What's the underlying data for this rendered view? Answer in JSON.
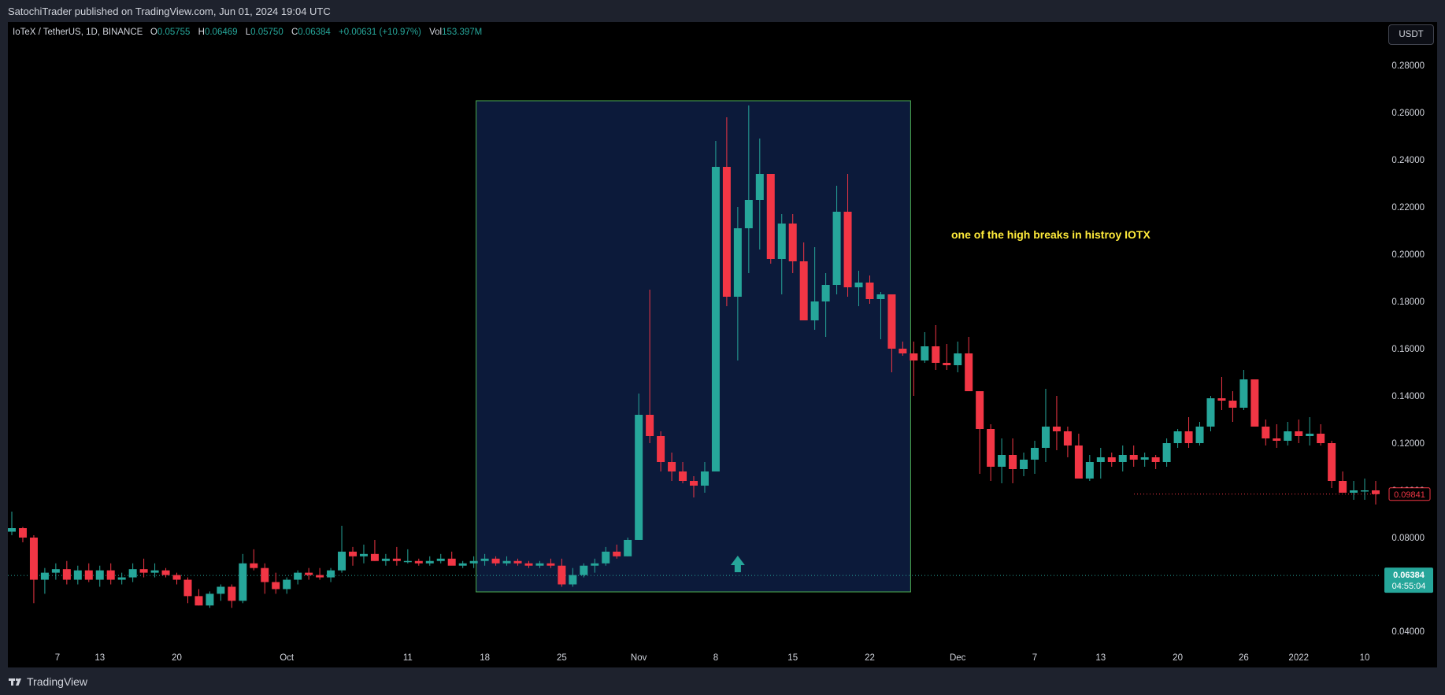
{
  "header": {
    "publish_line": "SatochiTrader published on TradingView.com, Jun 01, 2024 19:04 UTC"
  },
  "legend": {
    "symbol_line": "IoTeX / TetherUS, 1D, BINANCE",
    "o_label": "O",
    "o_value": "0.05755",
    "h_label": "H",
    "h_value": "0.06469",
    "l_label": "L",
    "l_value": "0.05750",
    "c_label": "C",
    "c_value": "0.06384",
    "change": "+0.00631 (+10.97%)",
    "vol_label": "Vol",
    "vol_value": "153.397M"
  },
  "currency_button": "USDT",
  "footer": {
    "brand": "TradingView"
  },
  "colors": {
    "up": "#26a69a",
    "down": "#f23645",
    "background": "#000000",
    "highlight_box_fill": "#0c1a3a",
    "highlight_box_border": "#4caf50",
    "annotation": "#ffeb3b"
  },
  "chart_data": {
    "type": "candlestick",
    "title": "IoTeX / TetherUS, 1D, BINANCE",
    "ylim": [
      0.03,
      0.285
    ],
    "y_ticks": [
      "0.28000",
      "0.26000",
      "0.24000",
      "0.22000",
      "0.20000",
      "0.18000",
      "0.16000",
      "0.14000",
      "0.12000",
      "0.10000",
      "0.08000",
      "0.04000"
    ],
    "x_ticks": [
      "7",
      "13",
      "20",
      "Oct",
      "11",
      "18",
      "25",
      "Nov",
      "8",
      "15",
      "22",
      "Dec",
      "7",
      "13",
      "20",
      "26",
      "2022",
      "10"
    ],
    "price_tags": {
      "prior_close": "0.09841",
      "last_price": "0.06384",
      "countdown": "04:55:04"
    },
    "annotation": "one of the high breaks in histroy IOTX",
    "highlight_range_x": [
      "18",
      "22"
    ],
    "candles": [
      [
        0.0825,
        0.091,
        0.081,
        0.084
      ],
      [
        0.084,
        0.0845,
        0.078,
        0.08
      ],
      [
        0.08,
        0.081,
        0.052,
        0.062
      ],
      [
        0.062,
        0.067,
        0.056,
        0.065
      ],
      [
        0.065,
        0.069,
        0.062,
        0.0665
      ],
      [
        0.0665,
        0.07,
        0.06,
        0.062
      ],
      [
        0.062,
        0.068,
        0.06,
        0.066
      ],
      [
        0.066,
        0.069,
        0.061,
        0.062
      ],
      [
        0.062,
        0.068,
        0.059,
        0.066
      ],
      [
        0.066,
        0.069,
        0.06,
        0.062
      ],
      [
        0.062,
        0.065,
        0.06,
        0.063
      ],
      [
        0.063,
        0.069,
        0.061,
        0.0665
      ],
      [
        0.0665,
        0.071,
        0.063,
        0.065
      ],
      [
        0.065,
        0.069,
        0.063,
        0.066
      ],
      [
        0.066,
        0.067,
        0.063,
        0.064
      ],
      [
        0.064,
        0.065,
        0.06,
        0.062
      ],
      [
        0.062,
        0.063,
        0.052,
        0.055
      ],
      [
        0.055,
        0.058,
        0.051,
        0.051
      ],
      [
        0.051,
        0.057,
        0.05,
        0.056
      ],
      [
        0.056,
        0.06,
        0.053,
        0.059
      ],
      [
        0.059,
        0.06,
        0.05,
        0.053
      ],
      [
        0.053,
        0.073,
        0.052,
        0.069
      ],
      [
        0.069,
        0.075,
        0.066,
        0.067
      ],
      [
        0.067,
        0.069,
        0.056,
        0.061
      ],
      [
        0.061,
        0.065,
        0.056,
        0.058
      ],
      [
        0.058,
        0.063,
        0.056,
        0.062
      ],
      [
        0.062,
        0.066,
        0.06,
        0.065
      ],
      [
        0.065,
        0.067,
        0.062,
        0.064
      ],
      [
        0.064,
        0.067,
        0.062,
        0.063
      ],
      [
        0.063,
        0.067,
        0.061,
        0.066
      ],
      [
        0.066,
        0.085,
        0.065,
        0.074
      ],
      [
        0.074,
        0.076,
        0.068,
        0.072
      ],
      [
        0.072,
        0.077,
        0.069,
        0.073
      ],
      [
        0.073,
        0.079,
        0.07,
        0.07
      ],
      [
        0.07,
        0.073,
        0.068,
        0.071
      ],
      [
        0.071,
        0.076,
        0.068,
        0.07
      ],
      [
        0.07,
        0.075,
        0.069,
        0.07
      ],
      [
        0.07,
        0.071,
        0.068,
        0.069
      ],
      [
        0.069,
        0.072,
        0.068,
        0.07
      ],
      [
        0.07,
        0.073,
        0.069,
        0.071
      ],
      [
        0.071,
        0.074,
        0.069,
        0.068
      ],
      [
        0.068,
        0.07,
        0.067,
        0.069
      ],
      [
        0.069,
        0.072,
        0.067,
        0.07
      ],
      [
        0.07,
        0.073,
        0.068,
        0.071
      ],
      [
        0.071,
        0.072,
        0.068,
        0.069
      ],
      [
        0.069,
        0.072,
        0.068,
        0.07
      ],
      [
        0.07,
        0.071,
        0.068,
        0.069
      ],
      [
        0.069,
        0.07,
        0.067,
        0.068
      ],
      [
        0.068,
        0.07,
        0.067,
        0.069
      ],
      [
        0.069,
        0.071,
        0.067,
        0.068
      ],
      [
        0.068,
        0.071,
        0.059,
        0.06
      ],
      [
        0.06,
        0.067,
        0.059,
        0.064
      ],
      [
        0.064,
        0.069,
        0.063,
        0.068
      ],
      [
        0.068,
        0.071,
        0.065,
        0.069
      ],
      [
        0.069,
        0.076,
        0.068,
        0.074
      ],
      [
        0.074,
        0.077,
        0.071,
        0.072
      ],
      [
        0.072,
        0.08,
        0.072,
        0.079
      ],
      [
        0.079,
        0.141,
        0.079,
        0.132
      ],
      [
        0.132,
        0.185,
        0.12,
        0.123
      ],
      [
        0.123,
        0.125,
        0.108,
        0.112
      ],
      [
        0.112,
        0.116,
        0.104,
        0.108
      ],
      [
        0.108,
        0.112,
        0.103,
        0.104
      ],
      [
        0.104,
        0.106,
        0.097,
        0.102
      ],
      [
        0.102,
        0.112,
        0.099,
        0.108
      ],
      [
        0.108,
        0.248,
        0.108,
        0.237
      ],
      [
        0.237,
        0.258,
        0.178,
        0.182
      ],
      [
        0.182,
        0.22,
        0.155,
        0.211
      ],
      [
        0.211,
        0.263,
        0.192,
        0.223
      ],
      [
        0.223,
        0.249,
        0.202,
        0.234
      ],
      [
        0.234,
        0.234,
        0.196,
        0.198
      ],
      [
        0.198,
        0.217,
        0.183,
        0.213
      ],
      [
        0.213,
        0.217,
        0.192,
        0.197
      ],
      [
        0.197,
        0.205,
        0.174,
        0.172
      ],
      [
        0.172,
        0.203,
        0.168,
        0.18
      ],
      [
        0.18,
        0.192,
        0.165,
        0.187
      ],
      [
        0.187,
        0.229,
        0.183,
        0.218
      ],
      [
        0.218,
        0.234,
        0.182,
        0.186
      ],
      [
        0.186,
        0.193,
        0.178,
        0.188
      ],
      [
        0.188,
        0.191,
        0.179,
        0.181
      ],
      [
        0.181,
        0.184,
        0.164,
        0.183
      ],
      [
        0.183,
        0.183,
        0.15,
        0.16
      ],
      [
        0.16,
        0.163,
        0.157,
        0.158
      ],
      [
        0.158,
        0.163,
        0.14,
        0.155
      ],
      [
        0.155,
        0.167,
        0.154,
        0.161
      ],
      [
        0.161,
        0.17,
        0.151,
        0.154
      ],
      [
        0.154,
        0.162,
        0.151,
        0.153
      ],
      [
        0.153,
        0.163,
        0.15,
        0.158
      ],
      [
        0.158,
        0.165,
        0.142,
        0.142
      ],
      [
        0.142,
        0.142,
        0.107,
        0.126
      ],
      [
        0.126,
        0.128,
        0.104,
        0.11
      ],
      [
        0.11,
        0.122,
        0.103,
        0.115
      ],
      [
        0.115,
        0.122,
        0.103,
        0.109
      ],
      [
        0.109,
        0.116,
        0.106,
        0.113
      ],
      [
        0.113,
        0.121,
        0.107,
        0.118
      ],
      [
        0.118,
        0.143,
        0.112,
        0.127
      ],
      [
        0.127,
        0.14,
        0.117,
        0.125
      ],
      [
        0.125,
        0.127,
        0.114,
        0.119
      ],
      [
        0.119,
        0.124,
        0.105,
        0.105
      ],
      [
        0.105,
        0.115,
        0.104,
        0.112
      ],
      [
        0.112,
        0.118,
        0.105,
        0.114
      ],
      [
        0.114,
        0.116,
        0.11,
        0.112
      ],
      [
        0.112,
        0.119,
        0.108,
        0.115
      ],
      [
        0.115,
        0.119,
        0.11,
        0.113
      ],
      [
        0.113,
        0.116,
        0.11,
        0.114
      ],
      [
        0.114,
        0.115,
        0.109,
        0.112
      ],
      [
        0.112,
        0.122,
        0.11,
        0.12
      ],
      [
        0.12,
        0.126,
        0.118,
        0.125
      ],
      [
        0.125,
        0.131,
        0.118,
        0.12
      ],
      [
        0.12,
        0.129,
        0.119,
        0.127
      ],
      [
        0.127,
        0.14,
        0.125,
        0.139
      ],
      [
        0.139,
        0.148,
        0.134,
        0.138
      ],
      [
        0.138,
        0.142,
        0.129,
        0.135
      ],
      [
        0.135,
        0.151,
        0.134,
        0.147
      ],
      [
        0.147,
        0.146,
        0.127,
        0.127
      ],
      [
        0.127,
        0.13,
        0.119,
        0.122
      ],
      [
        0.122,
        0.128,
        0.118,
        0.121
      ],
      [
        0.121,
        0.129,
        0.119,
        0.125
      ],
      [
        0.125,
        0.13,
        0.12,
        0.123
      ],
      [
        0.123,
        0.131,
        0.119,
        0.124
      ],
      [
        0.124,
        0.128,
        0.119,
        0.12
      ],
      [
        0.12,
        0.121,
        0.101,
        0.104
      ],
      [
        0.104,
        0.108,
        0.099,
        0.099
      ],
      [
        0.099,
        0.104,
        0.096,
        0.1
      ],
      [
        0.1,
        0.105,
        0.096,
        0.1
      ],
      [
        0.1,
        0.104,
        0.094,
        0.0984
      ]
    ]
  }
}
